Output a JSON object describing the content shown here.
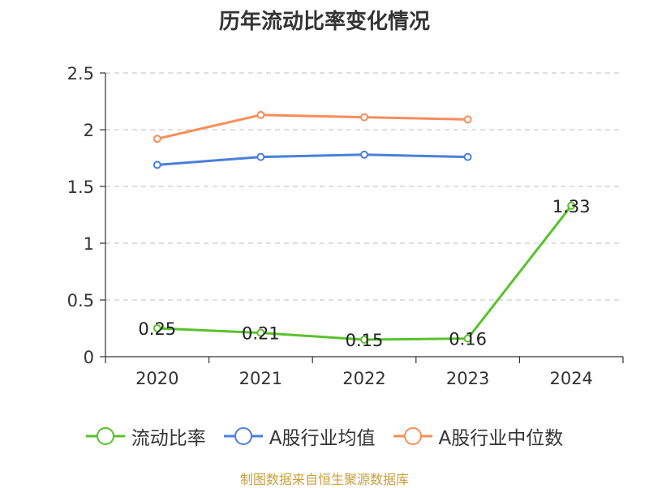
{
  "chart_data": {
    "type": "line",
    "title": "历年流动比率变化情况",
    "categories": [
      "2020",
      "2021",
      "2022",
      "2023",
      "2024"
    ],
    "ylim": [
      0,
      2.5
    ],
    "yticks": [
      "0",
      "0.5",
      "1",
      "1.5",
      "2",
      "2.5"
    ],
    "grid": true,
    "legend_position": "bottom",
    "series": [
      {
        "name": "流动比率",
        "color": "#5ac12c",
        "values": [
          0.25,
          0.21,
          0.15,
          0.16,
          1.33
        ],
        "labels": [
          "0.25",
          "0.21",
          "0.15",
          "0.16",
          "1.33"
        ]
      },
      {
        "name": "A股行业均值",
        "color": "#4a7fdb",
        "values": [
          1.69,
          1.76,
          1.78,
          1.76,
          null
        ]
      },
      {
        "name": "A股行业中位数",
        "color": "#f88d5a",
        "values": [
          1.92,
          2.13,
          2.11,
          2.09,
          null
        ]
      }
    ],
    "source": "制图数据来自恒生聚源数据库"
  }
}
